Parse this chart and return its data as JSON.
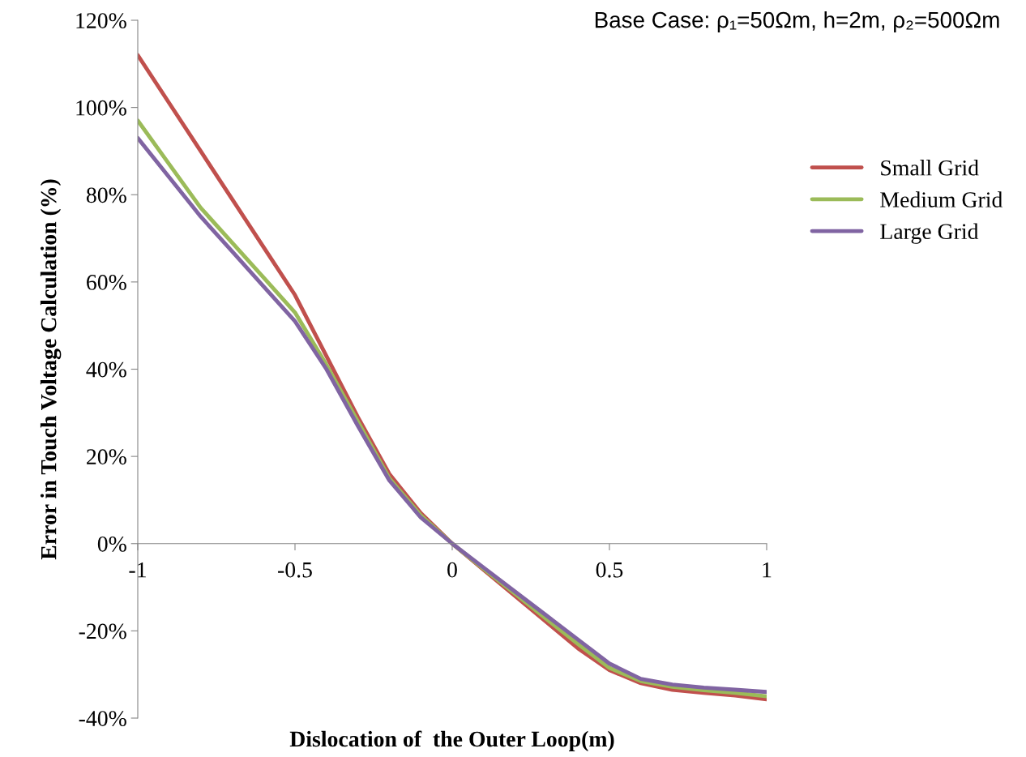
{
  "chart_data": {
    "type": "line",
    "title": "Base Case: ρ₁=50Ωm, h=2m, ρ₂=500Ωm",
    "xlabel": "Dislocation of  the Outer Loop(m)",
    "ylabel": "Error in Touch Voltage Calculation (%)",
    "x": [
      -1,
      -0.9,
      -0.8,
      -0.7,
      -0.6,
      -0.5,
      -0.4,
      -0.3,
      -0.2,
      -0.1,
      0,
      0.1,
      0.2,
      0.3,
      0.4,
      0.5,
      0.6,
      0.7,
      0.8,
      0.9,
      1
    ],
    "series": [
      {
        "name": "Small Grid",
        "color": "#c0504d",
        "values": [
          112,
          101,
          90,
          79,
          68,
          57,
          43,
          29,
          16,
          7,
          0,
          -6,
          -12,
          -18,
          -24,
          -29,
          -32,
          -33.5,
          -34.2,
          -34.8,
          -35.7
        ]
      },
      {
        "name": "Medium Grid",
        "color": "#9bbb59",
        "values": [
          97,
          87,
          77,
          69,
          61,
          53,
          41,
          28,
          15,
          6.5,
          0,
          -5.8,
          -11.5,
          -17.3,
          -23,
          -28.5,
          -31.5,
          -32.8,
          -33.6,
          -34.2,
          -35
        ]
      },
      {
        "name": "Large Grid",
        "color": "#8064a2",
        "values": [
          93,
          84,
          75,
          67,
          59,
          51,
          40,
          27,
          14.5,
          6,
          0,
          -5.5,
          -11,
          -16.5,
          -22,
          -27.5,
          -31,
          -32.3,
          -33,
          -33.5,
          -34
        ]
      }
    ],
    "xlim": [
      -1,
      1
    ],
    "ylim": [
      -40,
      120
    ],
    "xticks": [
      {
        "value": -1,
        "label": "-1"
      },
      {
        "value": -0.5,
        "label": "-0.5"
      },
      0,
      0.5,
      1
    ],
    "yticks": [
      {
        "value": -40,
        "label": "-40%"
      },
      {
        "value": -20,
        "label": "-20%"
      },
      {
        "value": 0,
        "label": "0%"
      },
      {
        "value": 20,
        "label": "20%"
      },
      {
        "value": 40,
        "label": "40%"
      },
      {
        "value": 60,
        "label": "60%"
      },
      {
        "value": 80,
        "label": "80%"
      },
      {
        "value": 100,
        "label": "100%"
      },
      {
        "value": 120,
        "label": "120%"
      }
    ],
    "grid": false,
    "legend": "right",
    "marker": "none",
    "line_style": "solid"
  }
}
